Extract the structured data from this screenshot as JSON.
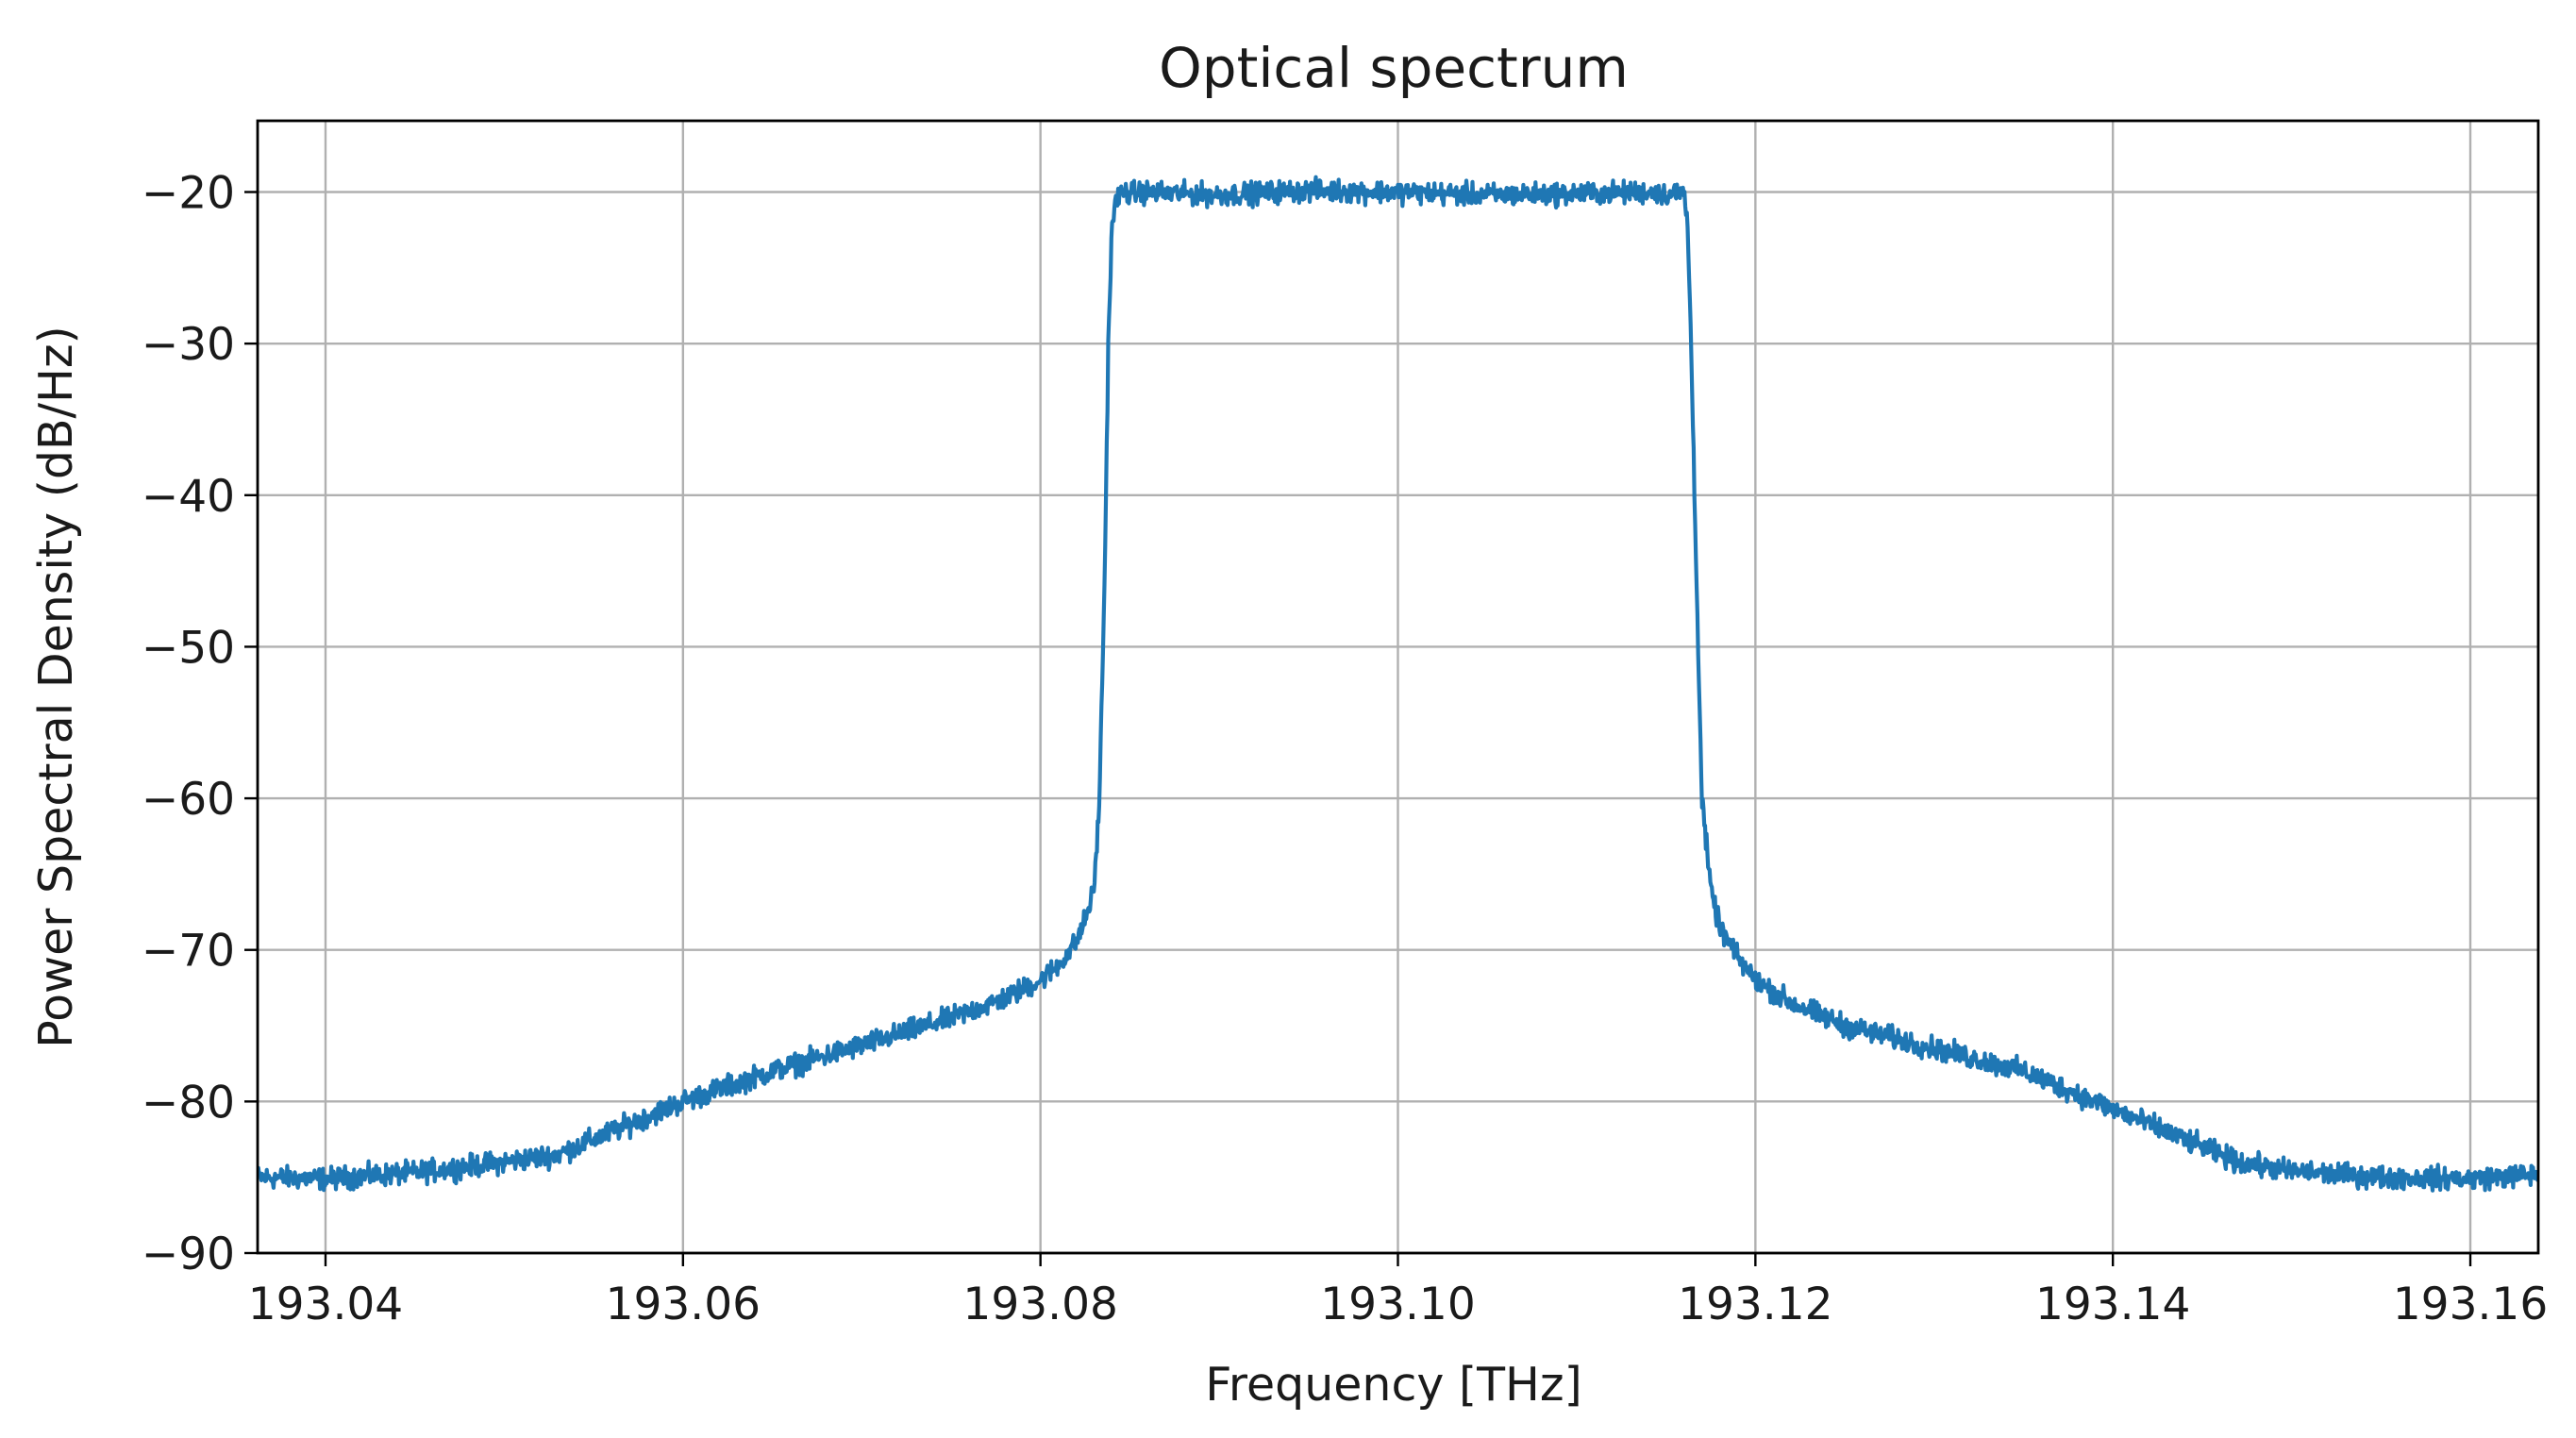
{
  "chart_data": {
    "type": "line",
    "title": "Optical spectrum",
    "xlabel": "Frequency [THz]",
    "ylabel": "Power Spectral Density (dB/Hz)",
    "xlim": [
      193.0362,
      193.1638
    ],
    "ylim": [
      -90,
      -15.3
    ],
    "xticks": [
      193.04,
      193.06,
      193.08,
      193.1,
      193.12,
      193.14,
      193.16
    ],
    "xtick_labels": [
      "193.04",
      "193.06",
      "193.08",
      "193.10",
      "193.12",
      "193.14",
      "193.16"
    ],
    "yticks": [
      -90,
      -80,
      -70,
      -60,
      -50,
      -40,
      -30,
      -20
    ],
    "ytick_labels": [
      "−90",
      "−80",
      "−70",
      "−60",
      "−50",
      "−40",
      "−30",
      "−20"
    ],
    "grid": true,
    "legend": "none",
    "series": [
      {
        "color": "#1f77b4",
        "noise_db": 0.45,
        "x": [
          193.0362,
          193.04,
          193.045,
          193.05,
          193.053,
          193.056,
          193.06,
          193.065,
          193.07,
          193.075,
          193.078,
          193.08,
          193.081,
          193.082,
          193.0825,
          193.083,
          193.0833,
          193.0836,
          193.0838,
          193.084,
          193.0843,
          193.0847,
          193.085,
          193.0855,
          193.09,
          193.095,
          193.1,
          193.105,
          193.11,
          193.1145,
          193.115,
          193.1155,
          193.116,
          193.1162,
          193.1164,
          193.1167,
          193.117,
          193.1175,
          193.118,
          193.119,
          193.12,
          193.122,
          193.125,
          193.13,
          193.135,
          193.14,
          193.144,
          193.147,
          193.15,
          193.155,
          193.16,
          193.1638
        ],
        "y": [
          -85.0,
          -85.1,
          -84.7,
          -84.0,
          -83.5,
          -82.0,
          -80.0,
          -78.0,
          -76.3,
          -74.5,
          -73.2,
          -72.0,
          -71.0,
          -69.5,
          -68.0,
          -66.0,
          -60.0,
          -45.0,
          -30.0,
          -22.0,
          -20.3,
          -20.0,
          -20.1,
          -20.0,
          -20.2,
          -19.9,
          -20.0,
          -20.2,
          -20.1,
          -20.0,
          -20.2,
          -20.1,
          -20.0,
          -22.0,
          -30.0,
          -45.0,
          -60.0,
          -66.0,
          -68.5,
          -70.5,
          -72.0,
          -73.5,
          -75.0,
          -76.5,
          -78.0,
          -80.5,
          -82.5,
          -84.0,
          -84.6,
          -85.0,
          -85.1,
          -84.8
        ]
      }
    ]
  }
}
